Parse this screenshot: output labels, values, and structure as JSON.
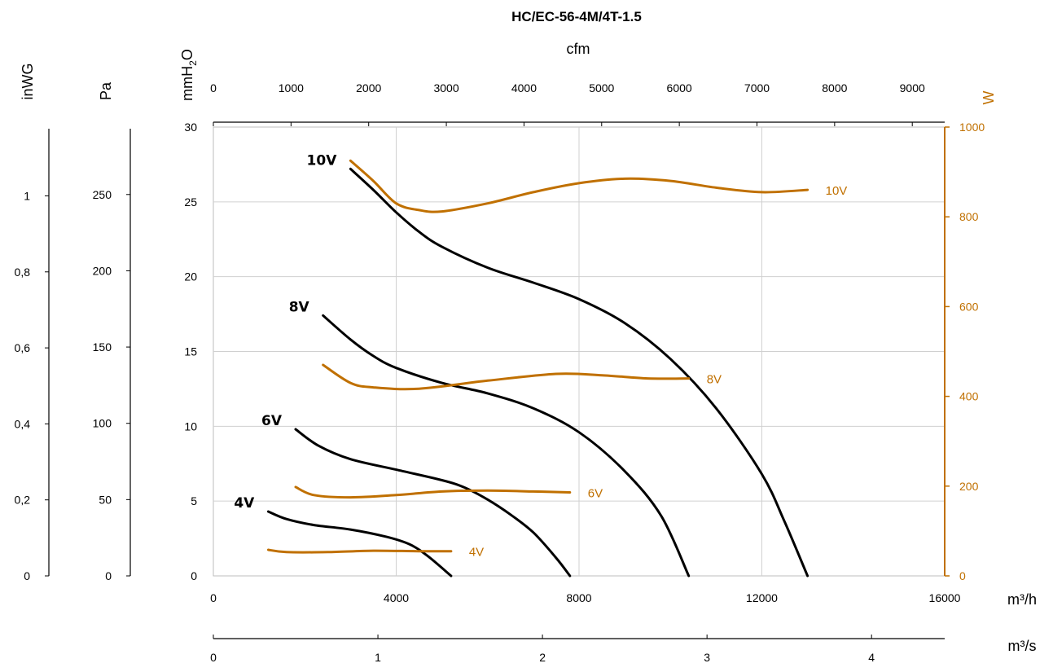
{
  "chart_data": {
    "type": "line",
    "title": "HC/EC-56-4M/4T-1.5",
    "colors": {
      "pressure": "#000000",
      "power": "#c07000",
      "grid": "#d0d0d0"
    },
    "x_axis": {
      "unit": "m³/h",
      "range": [
        0,
        16000
      ],
      "ticks": [
        0,
        4000,
        8000,
        12000,
        16000
      ],
      "tick_labels": [
        "0",
        "4000",
        "8000",
        "12000",
        "16000"
      ]
    },
    "top_axis": {
      "unit": "cfm",
      "tick_labels": [
        "0",
        "1000",
        "2000",
        "3000",
        "4000",
        "5000",
        "6000",
        "7000",
        "8000",
        "9000"
      ]
    },
    "bottom_axis": {
      "unit": "m³/s",
      "tick_labels": [
        "0",
        "1",
        "2",
        "3",
        "4"
      ]
    },
    "y_axis": {
      "unit_main": "mmH",
      "unit_sub": "2",
      "unit_end": "O",
      "range": [
        0,
        30
      ],
      "ticks": [
        0,
        5,
        10,
        15,
        20,
        25,
        30
      ],
      "tick_labels": [
        "0",
        "5",
        "10",
        "15",
        "20",
        "25",
        "30"
      ]
    },
    "pa_axis": {
      "unit": "Pa",
      "tick_labels": [
        "0",
        "50",
        "100",
        "150",
        "200",
        "250"
      ]
    },
    "inwg_axis": {
      "unit": "inWG",
      "tick_labels": [
        "0",
        "0,2",
        "0,4",
        "0,6",
        "0,8",
        "1"
      ]
    },
    "power_axis": {
      "unit": "W",
      "range": [
        0,
        1000
      ],
      "tick_labels": [
        "0",
        "200",
        "400",
        "600",
        "800",
        "1000"
      ]
    },
    "pressure_series": [
      {
        "name": "10V",
        "x": [
          3000,
          3500,
          4000,
          4500,
          5000,
          6000,
          7000,
          8000,
          9000,
          10000,
          11000,
          12000,
          12500,
          13000
        ],
        "y": [
          27.2,
          25.8,
          24.3,
          23.0,
          22.0,
          20.6,
          19.6,
          18.5,
          16.9,
          14.5,
          11.2,
          6.8,
          3.6,
          0
        ]
      },
      {
        "name": "8V",
        "x": [
          2400,
          3000,
          3500,
          4000,
          5000,
          6000,
          7000,
          8000,
          9000,
          9800,
          10400
        ],
        "y": [
          17.4,
          15.8,
          14.7,
          13.9,
          12.9,
          12.2,
          11.2,
          9.6,
          7.0,
          4.0,
          0
        ]
      },
      {
        "name": "6V",
        "x": [
          1800,
          2300,
          3000,
          4000,
          5000,
          5500,
          6000,
          6500,
          7000,
          7500,
          7800
        ],
        "y": [
          9.8,
          8.7,
          7.8,
          7.1,
          6.4,
          5.9,
          5.1,
          4.1,
          2.9,
          1.2,
          0
        ]
      },
      {
        "name": "4V",
        "x": [
          1200,
          1600,
          2200,
          3000,
          3800,
          4300,
          4700,
          5200
        ],
        "y": [
          4.3,
          3.8,
          3.4,
          3.1,
          2.6,
          2.1,
          1.3,
          0
        ]
      }
    ],
    "power_series": [
      {
        "name": "10V",
        "x": [
          3000,
          3500,
          4000,
          4500,
          5000,
          6000,
          7000,
          8000,
          9000,
          10000,
          11000,
          12000,
          13000
        ],
        "y": [
          925,
          880,
          830,
          815,
          812,
          830,
          855,
          875,
          885,
          880,
          865,
          855,
          860
        ]
      },
      {
        "name": "8V",
        "x": [
          2400,
          3000,
          3500,
          4500,
          6000,
          7500,
          8500,
          9500,
          10400
        ],
        "y": [
          470,
          430,
          420,
          417,
          435,
          450,
          447,
          440,
          440
        ]
      },
      {
        "name": "6V",
        "x": [
          1800,
          2200,
          3000,
          4000,
          5000,
          6000,
          7000,
          7800
        ],
        "y": [
          198,
          180,
          175,
          180,
          188,
          190,
          188,
          186
        ]
      },
      {
        "name": "4V",
        "x": [
          1200,
          1600,
          2500,
          3500,
          4500,
          5200
        ],
        "y": [
          58,
          53,
          53,
          56,
          55,
          55
        ]
      }
    ]
  }
}
